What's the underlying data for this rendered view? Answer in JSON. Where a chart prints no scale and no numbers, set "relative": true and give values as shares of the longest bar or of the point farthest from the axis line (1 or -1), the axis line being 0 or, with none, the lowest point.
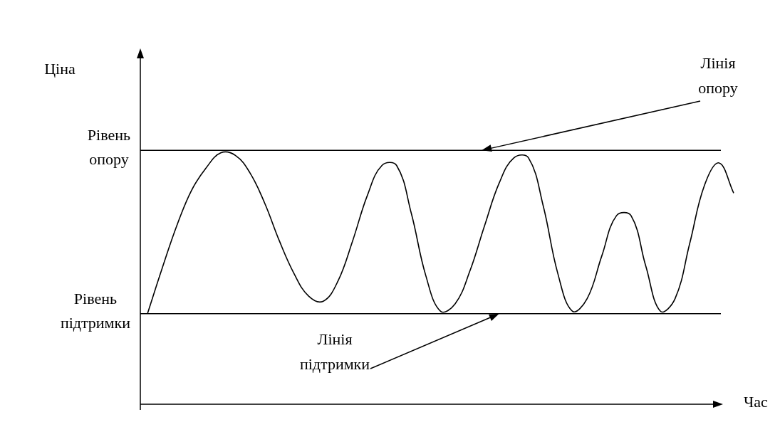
{
  "chart_data": {
    "type": "line",
    "relative": true,
    "xlabel": "Час",
    "categories": [
      null,
      null,
      null,
      null,
      null,
      null,
      null,
      null,
      null,
      null,
      null,
      null,
      null,
      null,
      null,
      null,
      null,
      null,
      null,
      null,
      null,
      null,
      null,
      null,
      null,
      null,
      null,
      null,
      null,
      null,
      null,
      null,
      null,
      null,
      null,
      null,
      null,
      null,
      null,
      null,
      null
    ],
    "series": [
      {
        "color": "#000000",
        "values": [
          0.36,
          0.54,
          0.71,
          0.85,
          0.94,
          1,
          0.99,
          0.92,
          0.8,
          0.65,
          0.52,
          0.43,
          0.41,
          0.49,
          0.65,
          0.83,
          0.95,
          0.95,
          0.76,
          0.51,
          0.37,
          0.4,
          0.53,
          0.71,
          0.88,
          0.98,
          0.98,
          0.79,
          0.52,
          0.37,
          0.42,
          0.59,
          0.75,
          0.75,
          0.55,
          0.37,
          0.42,
          0.64,
          0.87,
          0.96,
          0.84
        ]
      }
    ],
    "ref_lines": [
      {
        "axis": "y",
        "value": 1.01,
        "label": "Рівень опору",
        "color": "#000000"
      },
      {
        "axis": "y",
        "value": 0.36,
        "label": "Рівень підтримки",
        "color": "#000000"
      }
    ],
    "annotations": [
      "Лінія опору",
      "Лінія підтримки",
      "Ціна"
    ],
    "marker": "none",
    "line_style": "solid",
    "legend": false
  }
}
